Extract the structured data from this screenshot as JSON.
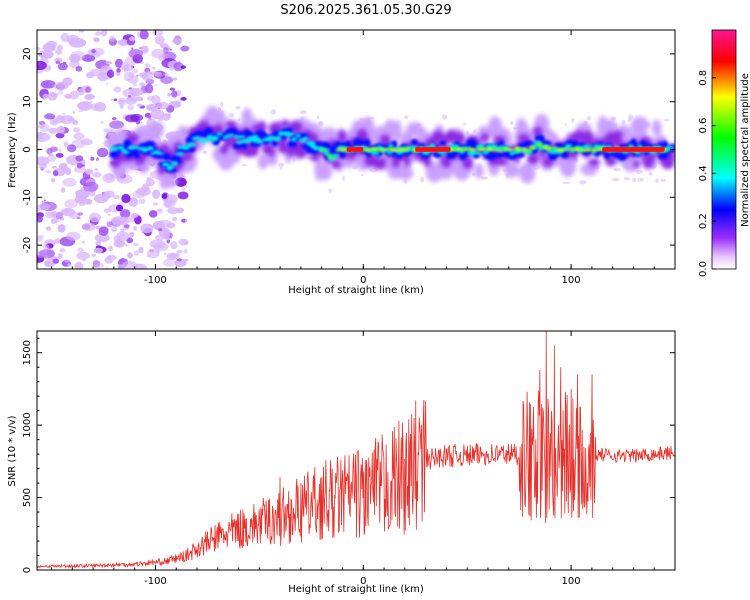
{
  "figure_title": "S206.2025.361.05.30.G29",
  "chart_data": [
    {
      "type": "heatmap",
      "title": "S206.2025.361.05.30.G29",
      "xlabel": "Height of straight line (km)",
      "ylabel": "Frequency (Hz)",
      "xlim": [
        -157,
        150
      ],
      "ylim": [
        -25,
        25
      ],
      "xticks": [
        -100,
        0,
        100
      ],
      "xtick_labels": [
        "-100",
        "0",
        "100"
      ],
      "yticks": [
        -20,
        -10,
        0,
        10,
        20
      ],
      "ytick_labels": [
        "-20",
        "-10",
        "0",
        "10",
        "20"
      ],
      "ridge": {
        "description": "dominant frequency track",
        "x": [
          -120,
          -100,
          -92,
          -88,
          -80,
          -70,
          -60,
          -50,
          -40,
          -30,
          -20,
          -15,
          -12,
          -8,
          0,
          20,
          40,
          60,
          80,
          85,
          90,
          100,
          110,
          120,
          130,
          140,
          148
        ],
        "y": [
          0,
          -0.3,
          -4,
          0,
          2,
          3,
          2,
          2,
          3,
          2,
          0,
          -2,
          0,
          0,
          0,
          0,
          0,
          0,
          0,
          1,
          0,
          0,
          0,
          0,
          0,
          0,
          0
        ]
      },
      "colorbar": {
        "label": "Normalized spectral amplitude",
        "ticks": [
          0.0,
          0.2,
          0.4,
          0.6,
          0.8
        ],
        "tick_labels": [
          "0.0",
          "0.2",
          "0.4",
          "0.6",
          "0.8"
        ],
        "range": [
          0,
          1
        ],
        "colors": [
          "#ffffff",
          "#e0b8ff",
          "#8a2be2",
          "#0000ff",
          "#00ffff",
          "#00ff00",
          "#ffff00",
          "#ff0000",
          "#ff0080"
        ]
      }
    },
    {
      "type": "line",
      "title": "",
      "xlabel": "Height of straight line (km)",
      "ylabel": "SNR (10 * v/v)",
      "xlim": [
        -157,
        150
      ],
      "ylim": [
        0,
        1650
      ],
      "xticks": [
        -100,
        0,
        100
      ],
      "xtick_labels": [
        "-100",
        "0",
        "100"
      ],
      "yticks": [
        0,
        500,
        1000,
        1500
      ],
      "ytick_labels": [
        "0",
        "500",
        "1000",
        "1500"
      ],
      "line_color": "#e8302a",
      "series": [
        {
          "name": "SNR",
          "envelope_x": [
            -157,
            -130,
            -110,
            -95,
            -85,
            -80,
            -70,
            -60,
            -50,
            -40,
            -30,
            -20,
            -10,
            0,
            10,
            20,
            25,
            30,
            40,
            50,
            60,
            70,
            75,
            80,
            85,
            90,
            95,
            100,
            105,
            110,
            112,
            120,
            130,
            140,
            150
          ],
          "envelope_y": [
            25,
            30,
            40,
            60,
            100,
            150,
            230,
            280,
            320,
            370,
            420,
            480,
            510,
            540,
            590,
            660,
            720,
            760,
            790,
            790,
            800,
            800,
            800,
            800,
            800,
            800,
            800,
            800,
            800,
            800,
            800,
            790,
            790,
            800,
            810
          ],
          "peaks_x": [
            -40,
            -30,
            -20,
            -15,
            0,
            10,
            22,
            28,
            85,
            88,
            92,
            95,
            100,
            103,
            110
          ],
          "peaks_y": [
            640,
            600,
            640,
            700,
            680,
            780,
            1040,
            1000,
            1380,
            1650,
            1550,
            1400,
            1250,
            1350,
            1350
          ]
        }
      ]
    }
  ]
}
